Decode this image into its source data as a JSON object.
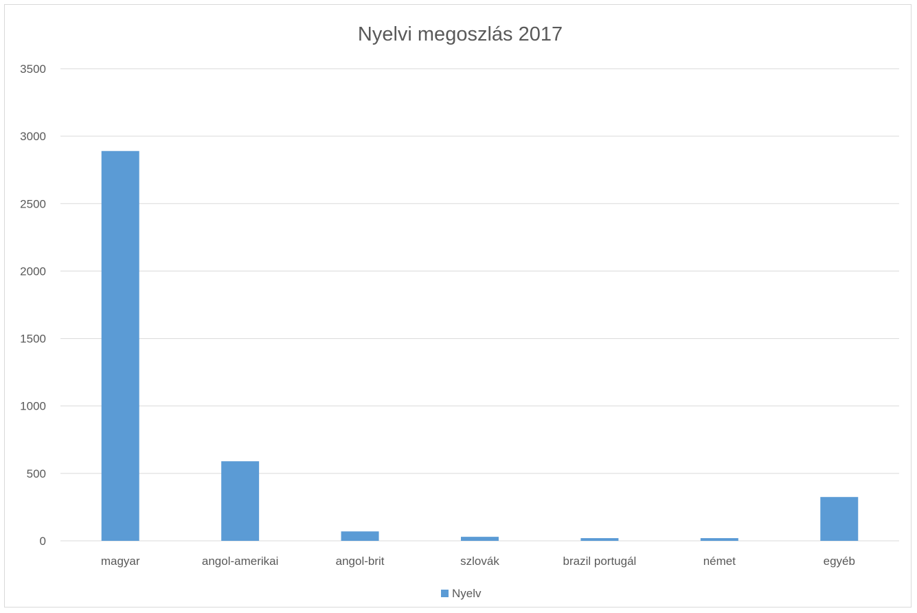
{
  "chart_data": {
    "type": "bar",
    "title": "Nyelvi megoszlás 2017",
    "categories": [
      "magyar",
      "angol-amerikai",
      "angol-brit",
      "szlovák",
      "brazil portugál",
      "német",
      "egyéb"
    ],
    "series": [
      {
        "name": "Nyelv",
        "values": [
          2890,
          590,
          70,
          30,
          20,
          20,
          325
        ],
        "color": "#5b9bd5"
      }
    ],
    "ylim": [
      0,
      3500
    ],
    "yticks": [
      "0",
      "500",
      "1000",
      "1500",
      "2000",
      "2500",
      "3000",
      "3500"
    ],
    "grid": true,
    "legend_position": "bottom"
  }
}
